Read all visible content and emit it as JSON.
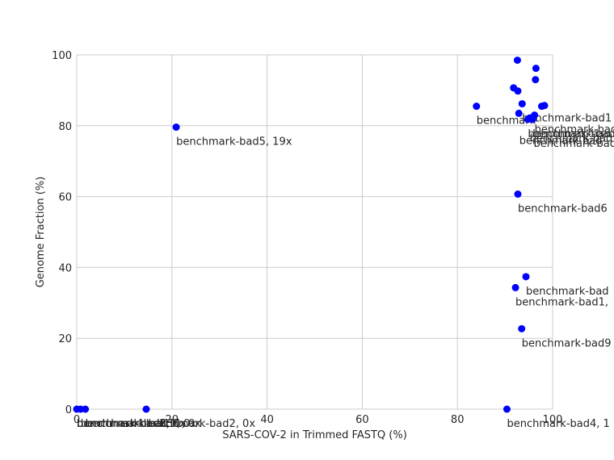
{
  "chart_data": {
    "type": "scatter",
    "title": "",
    "xlabel": "SARS-COV-2 in Trimmed FASTQ (%)",
    "ylabel": "Genome Fraction (%)",
    "xlim": [
      0,
      100
    ],
    "ylim": [
      0,
      100
    ],
    "xticks": [
      0,
      20,
      40,
      60,
      80,
      100
    ],
    "yticks": [
      0,
      20,
      40,
      60,
      80,
      100
    ],
    "grid": true,
    "marker_color": "#0000ff",
    "points": [
      {
        "x": 0.0,
        "y": 0.0,
        "label": ""
      },
      {
        "x": 0.8,
        "y": 0.0,
        "label": ""
      },
      {
        "x": 1.8,
        "y": 0.0,
        "label": ""
      },
      {
        "x": 14.6,
        "y": 0.0,
        "label": ""
      },
      {
        "x": 90.4,
        "y": 0.0,
        "label": "benchmark-bad4, 1"
      },
      {
        "x": 20.9,
        "y": 79.6,
        "label": "benchmark-bad5, 19x"
      },
      {
        "x": 84.0,
        "y": 85.5,
        "label": "benchmark-"
      },
      {
        "x": 92.7,
        "y": 60.7,
        "label": "benchmark-bad6"
      },
      {
        "x": 94.4,
        "y": 37.4,
        "label": "benchmark-bad"
      },
      {
        "x": 92.2,
        "y": 34.3,
        "label": "benchmark-bad1,"
      },
      {
        "x": 93.5,
        "y": 22.7,
        "label": "benchmark-bad9"
      },
      {
        "x": 92.6,
        "y": 98.5,
        "label": ""
      },
      {
        "x": 96.5,
        "y": 96.2,
        "label": ""
      },
      {
        "x": 96.4,
        "y": 93.0,
        "label": ""
      },
      {
        "x": 91.8,
        "y": 90.7,
        "label": ""
      },
      {
        "x": 92.7,
        "y": 89.8,
        "label": ""
      },
      {
        "x": 93.6,
        "y": 86.2,
        "label": "benchmark-bad1"
      },
      {
        "x": 97.7,
        "y": 85.5,
        "label": ""
      },
      {
        "x": 98.3,
        "y": 85.7,
        "label": ""
      },
      {
        "x": 92.9,
        "y": 83.5,
        "label": ""
      },
      {
        "x": 96.2,
        "y": 83.0,
        "label": "benchmark-bad"
      },
      {
        "x": 95.8,
        "y": 81.8,
        "label": "benchmark-bad"
      },
      {
        "x": 94.8,
        "y": 81.8,
        "label": "benchmark-bad"
      },
      {
        "x": 95.2,
        "y": 82.2,
        "label": ""
      }
    ],
    "extra_labels": [
      {
        "x": 0.0,
        "y": 0.0,
        "text": "benchmark-bad2, 0x"
      },
      {
        "x": 0.0,
        "y": 0.0,
        "text": "benchmark-bad3, 0x"
      },
      {
        "x": 0.0,
        "y": 0.0,
        "text": "benchmark-bad8, 0x"
      },
      {
        "x": 0.8,
        "y": 0.0,
        "text": "benchmark-bad10, 0x"
      },
      {
        "x": 1.8,
        "y": 0.0,
        "text": "benchmark-bad11, 0x"
      },
      {
        "x": 14.6,
        "y": 0.0,
        "text": "benchmark-bad2, 0x"
      },
      {
        "x": 93.0,
        "y": 79.8,
        "text": "benchmark-bad"
      },
      {
        "x": 95.2,
        "y": 80.5,
        "text": "benchmark-bad"
      },
      {
        "x": 96.0,
        "y": 79.0,
        "text": "benchmark-bad"
      }
    ]
  }
}
